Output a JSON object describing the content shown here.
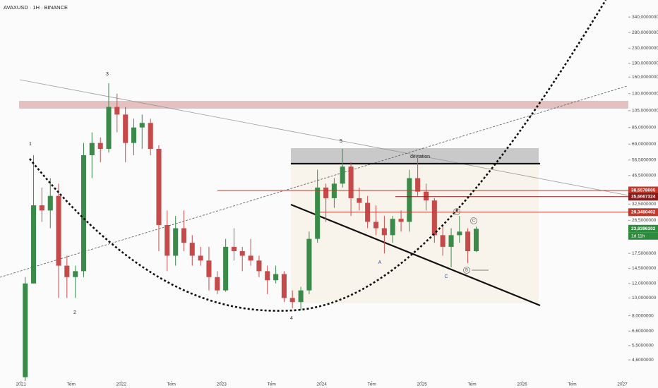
{
  "chart_data": {
    "type": "candlestick",
    "title": "AVAXUSD · 1H · BINANCE",
    "x": [
      2021.042,
      2021.125,
      2021.208,
      2021.292,
      2021.375,
      2021.458,
      2021.542,
      2021.625,
      2021.708,
      2021.792,
      2021.875,
      2021.958,
      2022.042,
      2022.125,
      2022.208,
      2022.292,
      2022.375,
      2022.458,
      2022.542,
      2022.625,
      2022.708,
      2022.792,
      2022.875,
      2022.958,
      2023.042,
      2023.125,
      2023.208,
      2023.292,
      2023.375,
      2023.458,
      2023.542,
      2023.625,
      2023.708,
      2023.792,
      2023.875,
      2023.958,
      2024.042,
      2024.125,
      2024.208,
      2024.292,
      2024.375,
      2024.458,
      2024.542,
      2024.625,
      2024.708,
      2024.792,
      2024.875,
      2024.958,
      2025.042,
      2025.125,
      2025.208,
      2025.292,
      2025.375,
      2025.458,
      2025.542
    ],
    "open": [
      3.7,
      12,
      32,
      30,
      36,
      15,
      13,
      14,
      60,
      70,
      65,
      110,
      100,
      70,
      85,
      90,
      65,
      25,
      17,
      24,
      20,
      17,
      16,
      13,
      11,
      19,
      18,
      17,
      16,
      14,
      12.5,
      13.5,
      10,
      9.5,
      11,
      21,
      40,
      35,
      42,
      52,
      35,
      33,
      26,
      24,
      22,
      27,
      26,
      45,
      38,
      34,
      22,
      19,
      22,
      23,
      18
    ],
    "high": [
      13,
      60,
      40,
      45,
      42,
      17,
      15,
      70,
      80,
      75,
      148,
      130,
      110,
      95,
      100,
      95,
      68,
      30,
      28,
      30,
      22,
      19,
      19,
      14,
      21,
      24,
      19,
      21,
      17,
      15,
      15,
      14,
      11,
      11.5,
      23,
      50,
      42,
      45,
      65,
      55,
      40,
      36,
      32,
      28,
      28,
      30,
      50,
      58,
      42,
      35,
      25,
      24,
      28,
      24,
      24.5
    ],
    "low": [
      3,
      12,
      26,
      24,
      10,
      10,
      10,
      13,
      45,
      55,
      62,
      80,
      55,
      60,
      65,
      60,
      18,
      14,
      15,
      18,
      15,
      15,
      11,
      10.5,
      10.8,
      16,
      14,
      15,
      13,
      10.5,
      12,
      9.5,
      8.8,
      8.6,
      10.5,
      20,
      26,
      31,
      40,
      28,
      30,
      24,
      22,
      17.5,
      20,
      23,
      23,
      36,
      30,
      20,
      17,
      14.7,
      20,
      15.5,
      17.8
    ],
    "close": [
      12,
      32,
      30,
      36,
      15,
      13,
      14,
      60,
      70,
      65,
      110,
      100,
      70,
      85,
      90,
      65,
      25,
      17,
      24,
      20,
      17,
      16,
      13,
      11,
      19,
      18,
      17,
      16,
      14,
      12.5,
      13.5,
      10,
      9.5,
      11,
      21,
      40,
      35,
      42,
      52,
      35,
      33,
      26,
      24,
      22,
      27,
      26,
      45,
      38,
      34,
      22,
      19,
      22,
      23,
      18,
      23.8396302
    ],
    "up_color": "#3a8a4a",
    "down_color": "#c64a4a",
    "xlim": [
      2020.79,
      2027.06
    ],
    "xticks": [
      2021,
      {
        "value": 2021.5,
        "label": "Tem"
      },
      2022,
      {
        "value": 2022.5,
        "label": "Tem"
      },
      2023,
      {
        "value": 2023.5,
        "label": "Tem"
      },
      2024,
      {
        "value": 2024.5,
        "label": "Tem"
      },
      2025,
      {
        "value": 2025.5,
        "label": "Tem"
      },
      2026,
      {
        "value": 2026.5,
        "label": "Tem"
      },
      2027
    ],
    "ylim": [
      3.53,
      421
    ],
    "log_scale": true,
    "grid": false,
    "yticks": [
      {
        "value": 4.6,
        "label": "4,6000000"
      },
      {
        "value": 5.5,
        "label": "5,5000000"
      },
      {
        "value": 6.6,
        "label": "6,6000000"
      },
      {
        "value": 8,
        "label": "8,0000000"
      },
      {
        "value": 10,
        "label": "10,0000000"
      },
      {
        "value": 12,
        "label": "12,0000000"
      },
      {
        "value": 14.5,
        "label": "14,5000000"
      },
      {
        "value": 17.5,
        "label": "17,5000000"
      },
      {
        "value": 26.5,
        "label": "26,5000000"
      },
      {
        "value": 32.5,
        "label": "32,5000000"
      },
      {
        "value": 46.5,
        "label": "46,5000000"
      },
      {
        "value": 56.5,
        "label": "56,5000000"
      },
      {
        "value": 69,
        "label": "69,0000000"
      },
      {
        "value": 85,
        "label": "85,0000000"
      },
      {
        "value": 105,
        "label": "105,0000000"
      },
      {
        "value": 130,
        "label": "130,0000000"
      },
      {
        "value": 160,
        "label": "160,0000000"
      },
      {
        "value": 190,
        "label": "190,0000000"
      },
      {
        "value": 230,
        "label": "230,0000000"
      },
      {
        "value": 280,
        "label": "280,0000000"
      },
      {
        "value": 340,
        "label": "340,0000000"
      }
    ],
    "price_labels": [
      {
        "value": 38.5578005,
        "label": "38,5578005",
        "color": "#c0392b"
      },
      {
        "value": 35.6667324,
        "label": "35,6667324",
        "color": "#8b1a1a"
      },
      {
        "value": 29.3480402,
        "label": "29,3480402",
        "color": "#c0392b"
      },
      {
        "value": 23.8396302,
        "label": "23,8396302",
        "color": "#2e8b3e"
      }
    ],
    "countdown": "1d 11h",
    "wave_labels": [
      "1",
      "2",
      "3",
      "4",
      "5",
      "A",
      "C",
      "deviation",
      "A",
      "B",
      "C"
    ]
  }
}
